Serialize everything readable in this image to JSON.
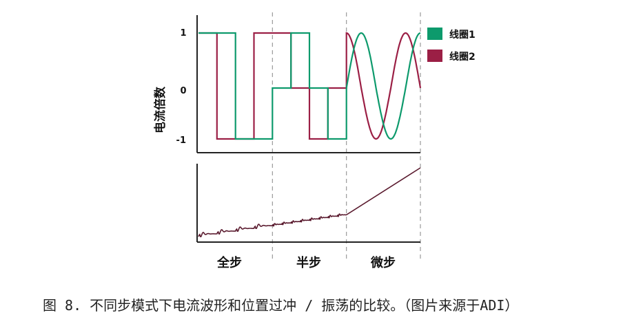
{
  "colors": {
    "coil1": "#0d9a6c",
    "coil2": "#9b1f45",
    "axis": "#222222",
    "divider": "#9a9a9a",
    "ramp": "#5a1a2e"
  },
  "chart_data": {
    "type": "line",
    "ylabel": "电流倍数",
    "yticks": [
      {
        "value": 1,
        "label": "1"
      },
      {
        "value": 0,
        "label": "0"
      },
      {
        "value": -1,
        "label": "-1"
      }
    ],
    "ylim": [
      -1,
      1
    ],
    "xlim": [
      0,
      12
    ],
    "legend": {
      "placement": "top-right"
    },
    "phases": [
      "全步",
      "半步",
      "微步"
    ],
    "phase_boundaries": [
      4,
      8,
      12
    ],
    "series": [
      {
        "name": "线圈1",
        "color_key": "coil1",
        "segments": [
          {
            "type": "step",
            "points": [
              [
                0,
                1
              ],
              [
                2,
                1
              ],
              [
                2,
                -1
              ],
              [
                4,
                -1
              ],
              [
                4,
                0
              ],
              [
                5,
                0
              ],
              [
                5,
                1
              ],
              [
                6,
                1
              ],
              [
                6,
                0
              ],
              [
                7,
                0
              ],
              [
                7,
                -1
              ],
              [
                8,
                -1
              ],
              [
                8,
                0
              ]
            ]
          },
          {
            "type": "sine",
            "x0": 8,
            "x1": 12,
            "phase_offset": 0
          }
        ]
      },
      {
        "name": "线圈2",
        "color_key": "coil2",
        "segments": [
          {
            "type": "step",
            "points": [
              [
                0,
                1
              ],
              [
                1,
                1
              ],
              [
                1,
                -1
              ],
              [
                3,
                -1
              ],
              [
                3,
                1
              ],
              [
                4,
                1
              ],
              [
                4,
                1
              ],
              [
                5,
                1
              ],
              [
                5,
                0
              ],
              [
                6,
                0
              ],
              [
                6,
                -1
              ],
              [
                7,
                -1
              ],
              [
                7,
                0
              ],
              [
                8,
                0
              ],
              [
                8,
                1
              ]
            ]
          },
          {
            "type": "cosine",
            "x0": 8,
            "x1": 12,
            "phase_offset": 0
          }
        ]
      }
    ]
  },
  "lower_panel": {
    "description_key": "position"
  },
  "caption": "图 8. 不同步模式下电流波形和位置过冲 / 振荡的比较。（图片来源于ADI）"
}
